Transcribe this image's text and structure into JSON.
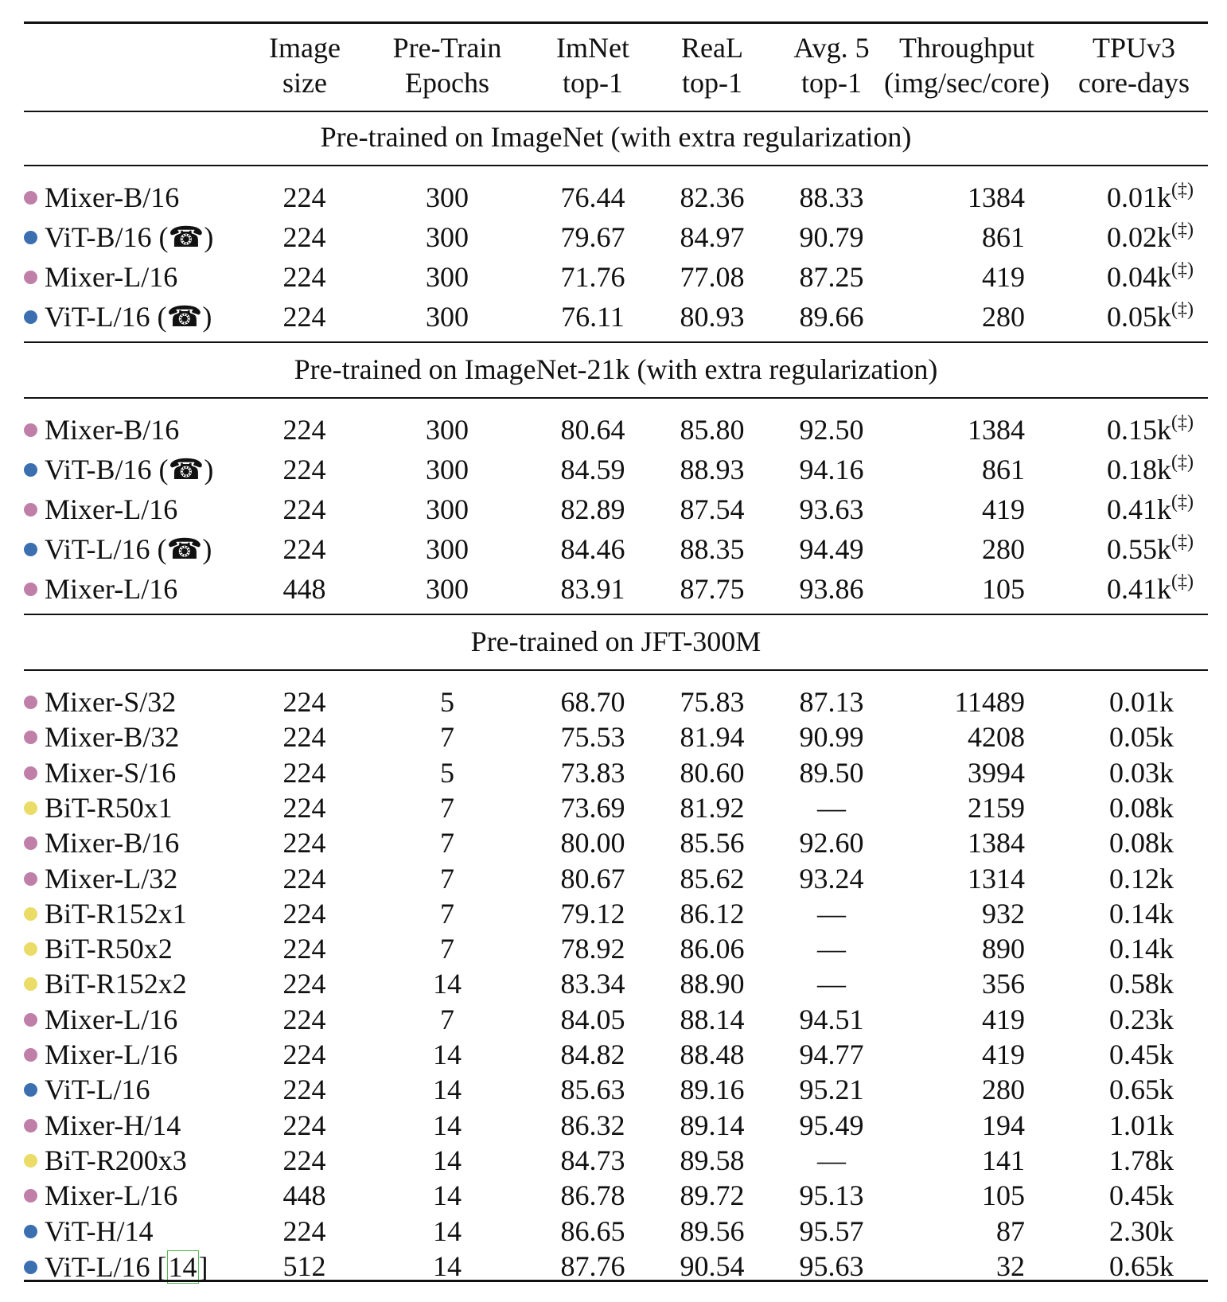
{
  "header": {
    "model": "",
    "image_size": [
      "Image",
      "size"
    ],
    "epochs": [
      "Pre-Train",
      "Epochs"
    ],
    "imnet": [
      "ImNet",
      "top-1"
    ],
    "real": [
      "ReaL",
      "top-1"
    ],
    "avg5": [
      "Avg. 5",
      "top-1"
    ],
    "throughput": [
      "Throughput",
      "(img/sec/core)"
    ],
    "cost": [
      "TPUv3",
      "core-days"
    ]
  },
  "colors": {
    "mixer": "#c07fa8",
    "vit": "#3b6fb0",
    "bit": "#ebdc68"
  },
  "sections": [
    {
      "title": "Pre-trained on ImageNet (with extra regularization)",
      "rows": [
        {
          "family": "mixer",
          "model": "Mixer-B/16",
          "size": "224",
          "epochs": "300",
          "imnet": "76.44",
          "real": "82.36",
          "avg5": "88.33",
          "throughput": "1384",
          "cost": "0.01k",
          "mark": "(‡)"
        },
        {
          "family": "vit",
          "model": "ViT-B/16 (☎)",
          "size": "224",
          "epochs": "300",
          "imnet": "79.67",
          "real": "84.97",
          "avg5": "90.79",
          "throughput": "861",
          "cost": "0.02k",
          "mark": "(‡)"
        },
        {
          "family": "mixer",
          "model": "Mixer-L/16",
          "size": "224",
          "epochs": "300",
          "imnet": "71.76",
          "real": "77.08",
          "avg5": "87.25",
          "throughput": "419",
          "cost": "0.04k",
          "mark": "(‡)"
        },
        {
          "family": "vit",
          "model": "ViT-L/16 (☎)",
          "size": "224",
          "epochs": "300",
          "imnet": "76.11",
          "real": "80.93",
          "avg5": "89.66",
          "throughput": "280",
          "cost": "0.05k",
          "mark": "(‡)"
        }
      ]
    },
    {
      "title": "Pre-trained on ImageNet-21k (with extra regularization)",
      "rows": [
        {
          "family": "mixer",
          "model": "Mixer-B/16",
          "size": "224",
          "epochs": "300",
          "imnet": "80.64",
          "real": "85.80",
          "avg5": "92.50",
          "throughput": "1384",
          "cost": "0.15k",
          "mark": "(‡)"
        },
        {
          "family": "vit",
          "model": "ViT-B/16 (☎)",
          "size": "224",
          "epochs": "300",
          "imnet": "84.59",
          "real": "88.93",
          "avg5": "94.16",
          "throughput": "861",
          "cost": "0.18k",
          "mark": "(‡)"
        },
        {
          "family": "mixer",
          "model": "Mixer-L/16",
          "size": "224",
          "epochs": "300",
          "imnet": "82.89",
          "real": "87.54",
          "avg5": "93.63",
          "throughput": "419",
          "cost": "0.41k",
          "mark": "(‡)"
        },
        {
          "family": "vit",
          "model": "ViT-L/16 (☎)",
          "size": "224",
          "epochs": "300",
          "imnet": "84.46",
          "real": "88.35",
          "avg5": "94.49",
          "throughput": "280",
          "cost": "0.55k",
          "mark": "(‡)"
        },
        {
          "family": "mixer",
          "model": "Mixer-L/16",
          "size": "448",
          "epochs": "300",
          "imnet": "83.91",
          "real": "87.75",
          "avg5": "93.86",
          "throughput": "105",
          "cost": "0.41k",
          "mark": "(‡)"
        }
      ]
    },
    {
      "title": "Pre-trained on JFT-300M",
      "rows": [
        {
          "family": "mixer",
          "model": "Mixer-S/32",
          "size": "224",
          "epochs": "5",
          "imnet": "68.70",
          "real": "75.83",
          "avg5": "87.13",
          "throughput": "11489",
          "cost": "0.01k"
        },
        {
          "family": "mixer",
          "model": "Mixer-B/32",
          "size": "224",
          "epochs": "7",
          "imnet": "75.53",
          "real": "81.94",
          "avg5": "90.99",
          "throughput": "4208",
          "cost": "0.05k"
        },
        {
          "family": "mixer",
          "model": "Mixer-S/16",
          "size": "224",
          "epochs": "5",
          "imnet": "73.83",
          "real": "80.60",
          "avg5": "89.50",
          "throughput": "3994",
          "cost": "0.03k"
        },
        {
          "family": "bit",
          "model": "BiT-R50x1",
          "size": "224",
          "epochs": "7",
          "imnet": "73.69",
          "real": "81.92",
          "avg5": "—",
          "throughput": "2159",
          "cost": "0.08k"
        },
        {
          "family": "mixer",
          "model": "Mixer-B/16",
          "size": "224",
          "epochs": "7",
          "imnet": "80.00",
          "real": "85.56",
          "avg5": "92.60",
          "throughput": "1384",
          "cost": "0.08k"
        },
        {
          "family": "mixer",
          "model": "Mixer-L/32",
          "size": "224",
          "epochs": "7",
          "imnet": "80.67",
          "real": "85.62",
          "avg5": "93.24",
          "throughput": "1314",
          "cost": "0.12k"
        },
        {
          "family": "bit",
          "model": "BiT-R152x1",
          "size": "224",
          "epochs": "7",
          "imnet": "79.12",
          "real": "86.12",
          "avg5": "—",
          "throughput": "932",
          "cost": "0.14k"
        },
        {
          "family": "bit",
          "model": "BiT-R50x2",
          "size": "224",
          "epochs": "7",
          "imnet": "78.92",
          "real": "86.06",
          "avg5": "—",
          "throughput": "890",
          "cost": "0.14k"
        },
        {
          "family": "bit",
          "model": "BiT-R152x2",
          "size": "224",
          "epochs": "14",
          "imnet": "83.34",
          "real": "88.90",
          "avg5": "—",
          "throughput": "356",
          "cost": "0.58k"
        },
        {
          "family": "mixer",
          "model": "Mixer-L/16",
          "size": "224",
          "epochs": "7",
          "imnet": "84.05",
          "real": "88.14",
          "avg5": "94.51",
          "throughput": "419",
          "cost": "0.23k"
        },
        {
          "family": "mixer",
          "model": "Mixer-L/16",
          "size": "224",
          "epochs": "14",
          "imnet": "84.82",
          "real": "88.48",
          "avg5": "94.77",
          "throughput": "419",
          "cost": "0.45k"
        },
        {
          "family": "vit",
          "model": "ViT-L/16",
          "size": "224",
          "epochs": "14",
          "imnet": "85.63",
          "real": "89.16",
          "avg5": "95.21",
          "throughput": "280",
          "cost": "0.65k"
        },
        {
          "family": "mixer",
          "model": "Mixer-H/14",
          "size": "224",
          "epochs": "14",
          "imnet": "86.32",
          "real": "89.14",
          "avg5": "95.49",
          "throughput": "194",
          "cost": "1.01k"
        },
        {
          "family": "bit",
          "model": "BiT-R200x3",
          "size": "224",
          "epochs": "14",
          "imnet": "84.73",
          "real": "89.58",
          "avg5": "—",
          "throughput": "141",
          "cost": "1.78k"
        },
        {
          "family": "mixer",
          "model": "Mixer-L/16",
          "size": "448",
          "epochs": "14",
          "imnet": "86.78",
          "real": "89.72",
          "avg5": "95.13",
          "throughput": "105",
          "cost": "0.45k"
        },
        {
          "family": "vit",
          "model": "ViT-H/14",
          "size": "224",
          "epochs": "14",
          "imnet": "86.65",
          "real": "89.56",
          "avg5": "95.57",
          "throughput": "87",
          "cost": "2.30k"
        },
        {
          "family": "vit",
          "model": "ViT-L/16",
          "cite": "14",
          "size": "512",
          "epochs": "14",
          "imnet": "87.76",
          "real": "90.54",
          "avg5": "95.63",
          "throughput": "32",
          "cost": "0.65k"
        }
      ]
    }
  ]
}
